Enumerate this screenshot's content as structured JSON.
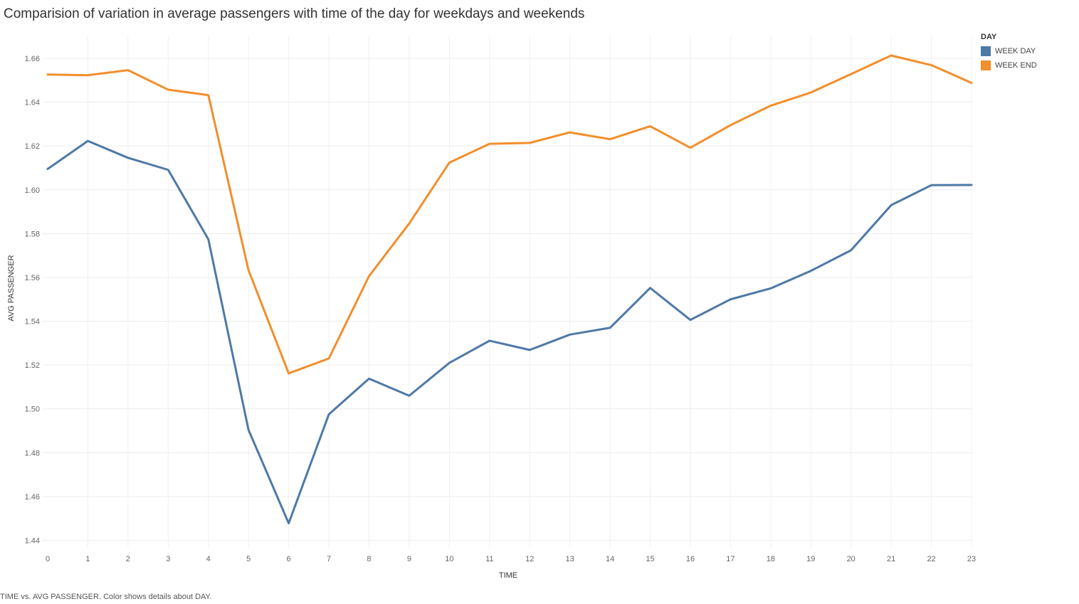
{
  "title": "Comparision of  variation in average passengers with time of the day for weekdays and weekends",
  "footer": "TIME vs. AVG PASSENGER.  Color shows details about DAY.",
  "legend": {
    "title": "DAY",
    "items": [
      {
        "label": "WEEK DAY",
        "color": "#4e79a7"
      },
      {
        "label": "WEEK END",
        "color": "#f28e2b"
      }
    ]
  },
  "chart_data": {
    "type": "line",
    "title": "Comparision of  variation in average passengers with time of the day for weekdays and weekends",
    "xlabel": "TIME",
    "ylabel": "AVG PASSENGER",
    "x": [
      0,
      1,
      2,
      3,
      4,
      5,
      6,
      7,
      8,
      9,
      10,
      11,
      12,
      13,
      14,
      15,
      16,
      17,
      18,
      19,
      20,
      21,
      22,
      23
    ],
    "xlim": [
      0,
      23
    ],
    "ylim": [
      1.44,
      1.67
    ],
    "yticks": [
      1.44,
      1.46,
      1.48,
      1.5,
      1.52,
      1.54,
      1.56,
      1.58,
      1.6,
      1.62,
      1.64,
      1.66
    ],
    "ytick_labels": [
      "1.44",
      "1.46",
      "1.48",
      "1.50",
      "1.52",
      "1.54",
      "1.56",
      "1.58",
      "1.60",
      "1.62",
      "1.64",
      "1.66"
    ],
    "grid": true,
    "legend_position": "top-right",
    "series": [
      {
        "name": "WEEK DAY",
        "color": "#4e79a7",
        "values": [
          1.6095,
          1.6223,
          1.6146,
          1.6091,
          1.5774,
          1.4904,
          1.4478,
          1.4975,
          1.5138,
          1.506,
          1.521,
          1.5311,
          1.5269,
          1.5339,
          1.537,
          1.5552,
          1.5406,
          1.55,
          1.555,
          1.563,
          1.5724,
          1.593,
          1.6021,
          1.6022
        ]
      },
      {
        "name": "WEEK END",
        "color": "#f28e2b",
        "values": [
          1.6526,
          1.6523,
          1.6546,
          1.6457,
          1.6432,
          1.5633,
          1.5162,
          1.523,
          1.5606,
          1.5846,
          1.6124,
          1.621,
          1.6214,
          1.6262,
          1.6231,
          1.629,
          1.6192,
          1.6295,
          1.6384,
          1.6444,
          1.6528,
          1.6613,
          1.6569,
          1.6488
        ]
      }
    ]
  }
}
